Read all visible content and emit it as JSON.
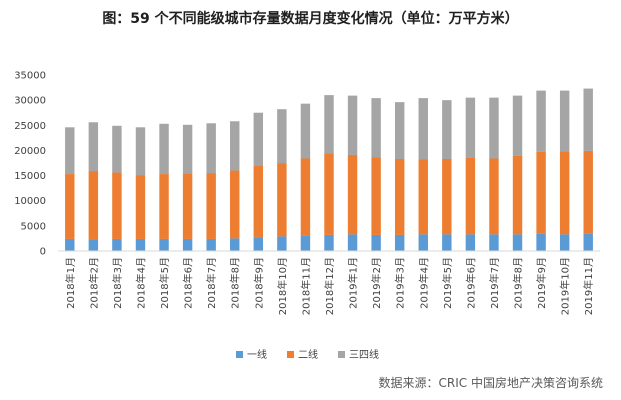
{
  "title": "图：59 个不同能级城市存量数据月度变化情况（单位：万平方米）",
  "source": "数据来源：CRIC 中国房地产决策咨询系统",
  "chart_data": {
    "type": "bar",
    "stacked": true,
    "categories": [
      "2018年1月",
      "2018年2月",
      "2018年3月",
      "2018年4月",
      "2018年5月",
      "2018年6月",
      "2018年7月",
      "2018年8月",
      "2018年9月",
      "2018年10月",
      "2018年11月",
      "2018年12月",
      "2019年1月",
      "2019年2月",
      "2019年3月",
      "2019年4月",
      "2019年5月",
      "2019年6月",
      "2019年7月",
      "2019年8月",
      "2019年9月",
      "2019年10月",
      "2019年11月"
    ],
    "series": [
      {
        "name": "一线",
        "color": "#5b9bd5",
        "values": [
          2400,
          2300,
          2400,
          2400,
          2400,
          2400,
          2400,
          2500,
          2700,
          2900,
          3000,
          3200,
          3300,
          3200,
          3200,
          3300,
          3300,
          3300,
          3300,
          3300,
          3400,
          3300,
          3400
        ]
      },
      {
        "name": "二线",
        "color": "#ed7d31",
        "values": [
          12900,
          13600,
          13200,
          12700,
          12900,
          13000,
          13100,
          13500,
          14200,
          14500,
          15400,
          16200,
          15800,
          15400,
          15100,
          14900,
          15000,
          15200,
          15100,
          15600,
          16300,
          16500,
          16500
        ]
      },
      {
        "name": "三四线",
        "color": "#a5a5a5",
        "values": [
          9300,
          9700,
          9300,
          9500,
          10000,
          9700,
          9900,
          9800,
          10600,
          10800,
          10900,
          11600,
          11800,
          11800,
          11300,
          12200,
          11700,
          12000,
          12100,
          12000,
          12200,
          12100,
          12400
        ]
      }
    ],
    "ylim": [
      0,
      35000
    ],
    "yticks": [
      "0",
      "5000",
      "10000",
      "15000",
      "20000",
      "25000",
      "30000",
      "35000"
    ],
    "grid": false,
    "legend_position": "bottom"
  }
}
